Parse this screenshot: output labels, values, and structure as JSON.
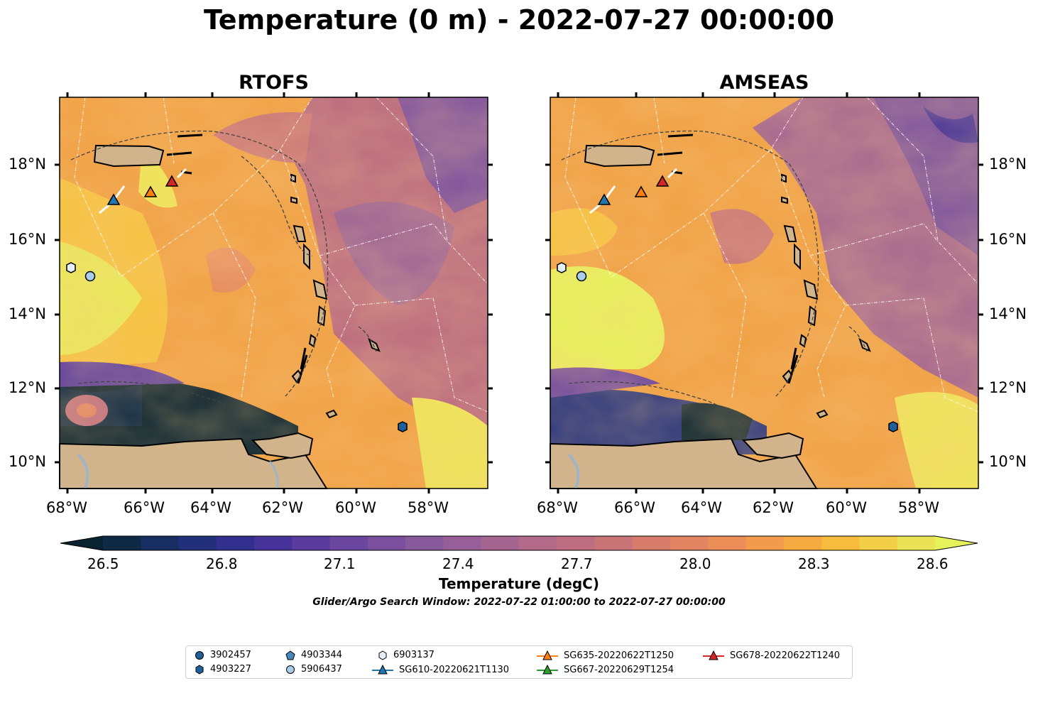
{
  "title": "Temperature (0 m) - 2022-07-27 00:00:00",
  "panels": [
    {
      "title": "RTOFS"
    },
    {
      "title": "AMSEAS"
    }
  ],
  "axes": {
    "lon_ticks": [
      "68°W",
      "66°W",
      "64°W",
      "62°W",
      "60°W",
      "58°W"
    ],
    "lat_ticks": [
      "18°N",
      "16°N",
      "14°N",
      "12°N",
      "10°N"
    ]
  },
  "colorbar": {
    "label": "Temperature (degC)",
    "ticks": [
      "26.5",
      "26.8",
      "27.1",
      "27.4",
      "27.7",
      "28.0",
      "28.3",
      "28.6"
    ],
    "colors": [
      "#08222f",
      "#0f2a44",
      "#172e62",
      "#22307c",
      "#322f8f",
      "#46339a",
      "#5a3c9e",
      "#6b469f",
      "#7a509e",
      "#88599b",
      "#965f97",
      "#a46590",
      "#b16a88",
      "#bd6e80",
      "#c97577",
      "#d77b6d",
      "#e38463",
      "#ec8e58",
      "#f39b4c",
      "#f6aa42",
      "#f7bc3e",
      "#f3cf47",
      "#eae356",
      "#e6f25a"
    ],
    "range": [
      26.4,
      28.7
    ]
  },
  "search_window": "Glider/Argo Search Window: 2022-07-22 01:00:00 to 2022-07-27 00:00:00",
  "colors": {
    "land": "#d2b48c",
    "sg610": "#1f77b4",
    "sg635": "#ff7f0e",
    "sg667": "#2ca02c",
    "sg678": "#d62728",
    "argo_dark": "#1f5f9c",
    "argo_light": "#a9cce8"
  },
  "legend": [
    {
      "label": "3902457",
      "icon": "circle-marker"
    },
    {
      "label": "4903227",
      "icon": "hexagon-marker"
    },
    {
      "label": "4903344",
      "icon": "pentagon-marker"
    },
    {
      "label": "5906437",
      "icon": "circle-marker"
    },
    {
      "label": "6903137",
      "icon": "hexagon-marker"
    },
    {
      "label": "SG610-20220621T1130",
      "icon": "triangle-line-marker"
    },
    {
      "label": "SG635-20220622T1250",
      "icon": "triangle-line-marker"
    },
    {
      "label": "SG667-20220629T1254",
      "icon": "triangle-line-marker"
    },
    {
      "label": "SG678-20220622T1240",
      "icon": "triangle-line-marker"
    }
  ]
}
